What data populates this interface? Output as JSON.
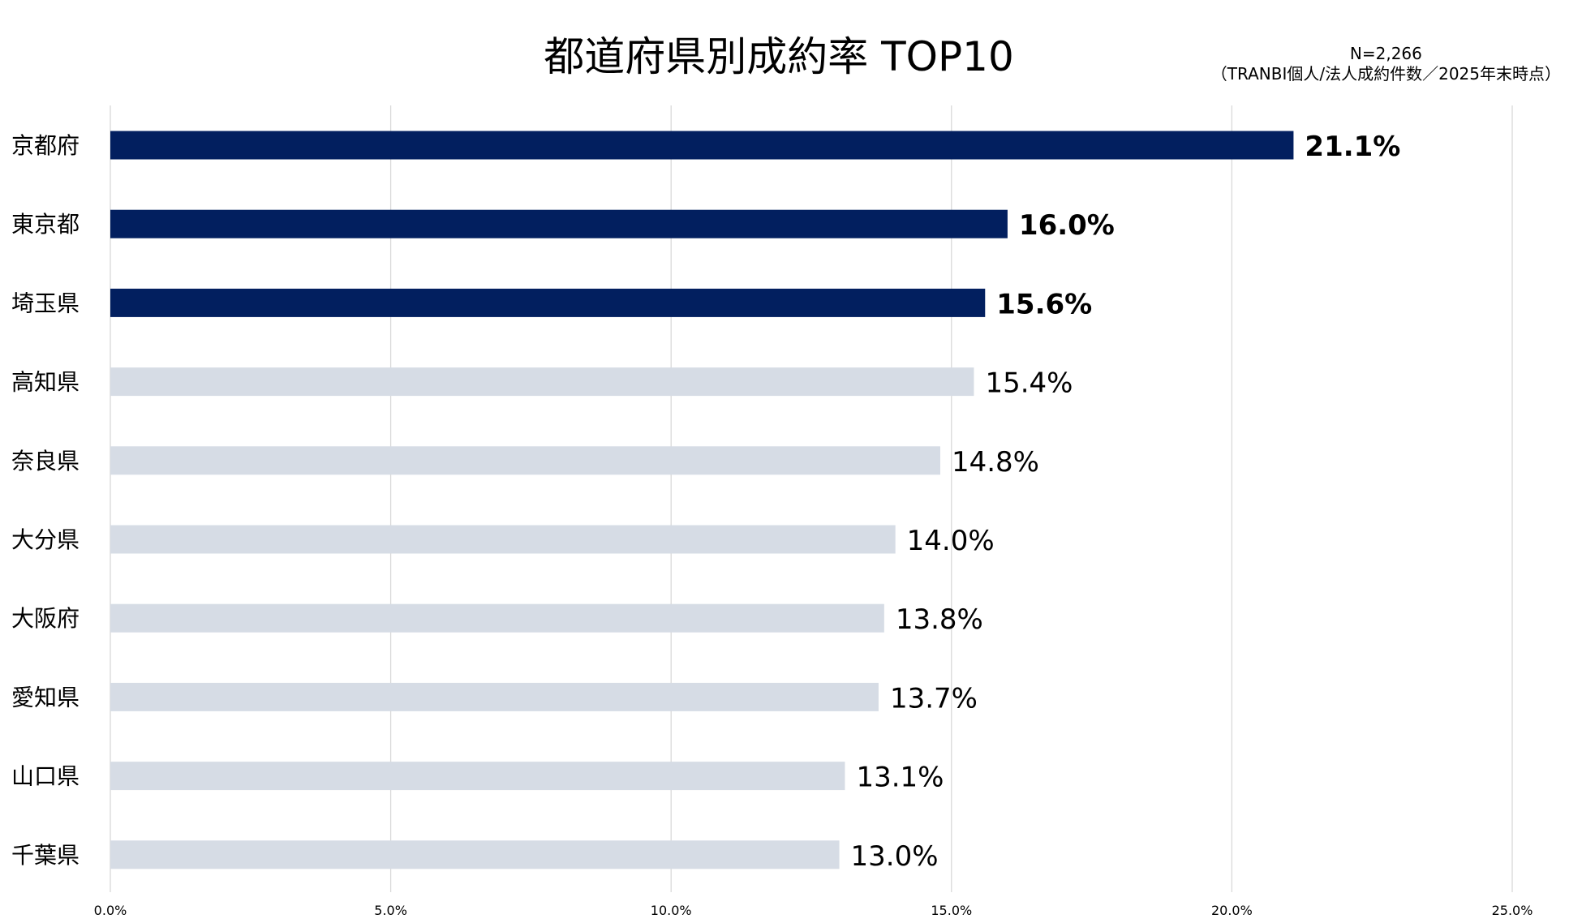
{
  "chart_data": {
    "type": "bar",
    "orientation": "horizontal",
    "title": "都道府県別成約率 TOP10",
    "note_lines": [
      "N=2,266",
      "（TRANBI個人/法人成約件数／2025年末時点）"
    ],
    "categories": [
      "京都府",
      "東京都",
      "埼玉県",
      "高知県",
      "奈良県",
      "大分県",
      "大阪府",
      "愛知県",
      "山口県",
      "千葉県"
    ],
    "values": [
      21.1,
      16.0,
      15.6,
      15.4,
      14.8,
      14.0,
      13.8,
      13.7,
      13.1,
      13.0
    ],
    "value_labels": [
      "21.1%",
      "16.0%",
      "15.6%",
      "15.4%",
      "14.8%",
      "14.0%",
      "13.8%",
      "13.7%",
      "13.1%",
      "13.0%"
    ],
    "highlighted": [
      true,
      true,
      true,
      false,
      false,
      false,
      false,
      false,
      false,
      false
    ],
    "xlim": [
      0,
      25
    ],
    "xticks": [
      0,
      5,
      10,
      15,
      20,
      25
    ],
    "xtick_labels": [
      "0.0%",
      "5.0%",
      "10.0%",
      "15.0%",
      "20.0%",
      "25.0%"
    ],
    "grid": "vertical",
    "colors": {
      "highlight": "#021f5f",
      "default": "#d6dce5",
      "grid": "#d9d9d9"
    }
  }
}
